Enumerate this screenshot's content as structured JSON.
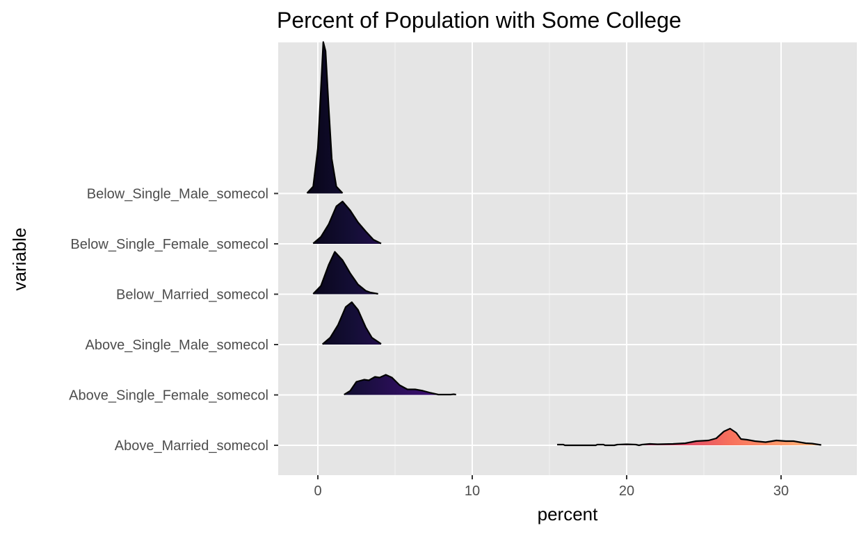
{
  "chart_data": {
    "type": "ridgeline",
    "title": "Percent of Population with Some College",
    "xlabel": "percent",
    "ylabel": "variable",
    "xlim": [
      -2.6,
      35
    ],
    "x_ticks": [
      0,
      10,
      20,
      30
    ],
    "x_tick_labels": [
      "0",
      "10",
      "20",
      "30"
    ],
    "grid": true,
    "background": "#e5e5e5",
    "fill_gradient": "magma (by x value)",
    "categories": [
      "Above_Married_somecol",
      "Above_Single_Female_somecol",
      "Above_Single_Male_somecol",
      "Below_Married_somecol",
      "Below_Single_Female_somecol",
      "Below_Single_Male_somecol"
    ],
    "series": [
      {
        "name": "Above_Married_somecol",
        "density": [
          [
            15.5,
            0.1
          ],
          [
            15.9,
            0.1
          ],
          [
            16.0,
            0
          ],
          [
            18.0,
            0
          ],
          [
            18.1,
            0.1
          ],
          [
            18.5,
            0.1
          ],
          [
            18.6,
            0
          ],
          [
            19.2,
            0
          ],
          [
            19.4,
            0.1
          ],
          [
            20.0,
            0.15
          ],
          [
            20.6,
            0.1
          ],
          [
            20.8,
            0
          ],
          [
            21.0,
            0.1
          ],
          [
            21.5,
            0.2
          ],
          [
            22.0,
            0.15
          ],
          [
            23.0,
            0.2
          ],
          [
            23.8,
            0.3
          ],
          [
            24.5,
            0.6
          ],
          [
            25.3,
            0.7
          ],
          [
            25.8,
            1.0
          ],
          [
            26.3,
            2.0
          ],
          [
            26.7,
            2.4
          ],
          [
            27.1,
            1.8
          ],
          [
            27.4,
            0.9
          ],
          [
            27.8,
            0.8
          ],
          [
            28.3,
            0.6
          ],
          [
            29.0,
            0.45
          ],
          [
            29.7,
            0.7
          ],
          [
            30.3,
            0.6
          ],
          [
            30.8,
            0.6
          ],
          [
            31.2,
            0.45
          ],
          [
            31.6,
            0.3
          ],
          [
            32.0,
            0.25
          ],
          [
            32.6,
            0.05
          ]
        ]
      },
      {
        "name": "Above_Single_Female_somecol",
        "density": [
          [
            1.7,
            0.05
          ],
          [
            2.1,
            0.6
          ],
          [
            2.5,
            1.9
          ],
          [
            3.0,
            2.2
          ],
          [
            3.3,
            2.1
          ],
          [
            3.7,
            2.6
          ],
          [
            4.0,
            2.5
          ],
          [
            4.4,
            2.9
          ],
          [
            4.8,
            2.5
          ],
          [
            5.3,
            1.4
          ],
          [
            5.8,
            0.8
          ],
          [
            6.3,
            0.8
          ],
          [
            6.8,
            0.6
          ],
          [
            7.3,
            0.3
          ],
          [
            7.8,
            0.05
          ],
          [
            8.6,
            0.05
          ],
          [
            8.8,
            0.1
          ],
          [
            8.95,
            0.05
          ]
        ]
      },
      {
        "name": "Above_Single_Male_somecol",
        "density": [
          [
            0.3,
            0.05
          ],
          [
            0.8,
            1.0
          ],
          [
            1.3,
            2.8
          ],
          [
            1.8,
            5.4
          ],
          [
            2.2,
            6.1
          ],
          [
            2.6,
            5.0
          ],
          [
            3.1,
            2.5
          ],
          [
            3.5,
            1.0
          ],
          [
            4.1,
            0.1
          ]
        ]
      },
      {
        "name": "Below_Married_somecol",
        "density": [
          [
            -0.3,
            0.05
          ],
          [
            0.2,
            1.2
          ],
          [
            0.7,
            4.2
          ],
          [
            1.1,
            6.1
          ],
          [
            1.6,
            4.9
          ],
          [
            2.1,
            3.0
          ],
          [
            2.6,
            1.4
          ],
          [
            3.1,
            0.5
          ],
          [
            3.4,
            0.25
          ],
          [
            3.9,
            0.05
          ]
        ]
      },
      {
        "name": "Below_Single_Female_somecol",
        "density": [
          [
            -0.3,
            0.05
          ],
          [
            0.2,
            1.0
          ],
          [
            0.7,
            2.8
          ],
          [
            1.2,
            5.4
          ],
          [
            1.6,
            6.1
          ],
          [
            2.1,
            4.8
          ],
          [
            2.6,
            3.1
          ],
          [
            3.1,
            1.8
          ],
          [
            3.6,
            0.6
          ],
          [
            4.1,
            0.05
          ]
        ]
      },
      {
        "name": "Below_Single_Male_somecol",
        "density": [
          [
            -0.7,
            0.05
          ],
          [
            -0.3,
            1.0
          ],
          [
            0.0,
            6.5
          ],
          [
            0.2,
            15.0
          ],
          [
            0.35,
            21.8
          ],
          [
            0.5,
            20.5
          ],
          [
            0.7,
            12.5
          ],
          [
            0.9,
            5.0
          ],
          [
            1.2,
            1.0
          ],
          [
            1.6,
            0.05
          ]
        ]
      }
    ]
  }
}
